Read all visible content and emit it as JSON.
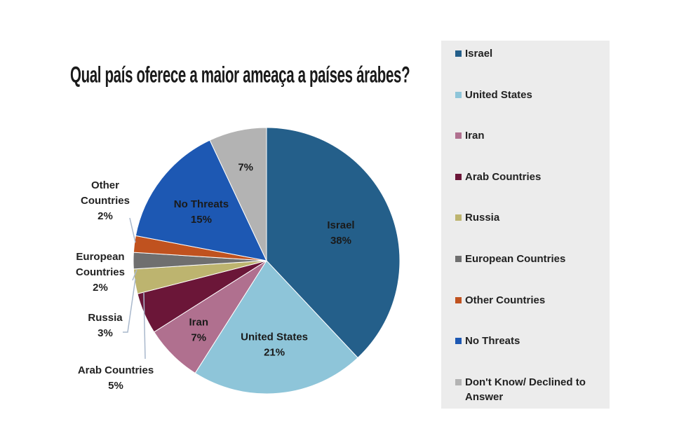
{
  "chart_data": {
    "type": "pie",
    "title": "Qual país oferece a maior ameaça a países árabes?",
    "slices": [
      {
        "label": "Israel",
        "value": 38,
        "display": "38%",
        "color": "#245f8a",
        "legend": "Israel"
      },
      {
        "label": "United States",
        "value": 21,
        "display": "21%",
        "color": "#8ec5d9",
        "legend": "United States"
      },
      {
        "label": "Iran",
        "value": 7,
        "display": "7%",
        "color": "#b0708f",
        "legend": "Iran"
      },
      {
        "label": "Arab Countries",
        "value": 5,
        "display": "5%",
        "color": "#6b1638",
        "legend": "Arab Countries"
      },
      {
        "label": "Russia",
        "value": 3,
        "display": "3%",
        "color": "#bdb46f",
        "legend": "Russia"
      },
      {
        "label": "European Countries",
        "value": 2,
        "display": "2%",
        "color": "#6f6f6f",
        "legend": "European Countries"
      },
      {
        "label": "Other Countries",
        "value": 2,
        "display": "2%",
        "color": "#c0521f",
        "legend": "Other Countries"
      },
      {
        "label": "No Threats",
        "value": 15,
        "display": "15%",
        "color": "#1d58b3",
        "legend": "No Threats"
      },
      {
        "label": "",
        "value": 7,
        "display": "7%",
        "color": "#b3b3b3",
        "legend": "Don't Know/ Declined to Answer"
      }
    ],
    "external_labels": {
      "other": [
        "Other",
        "Countries",
        "2%"
      ],
      "european": [
        "European",
        "Countries",
        "2%"
      ],
      "russia": [
        "Russia",
        "3%"
      ],
      "arab": [
        "Arab Countries",
        "5%"
      ]
    },
    "legend_position": "right"
  }
}
